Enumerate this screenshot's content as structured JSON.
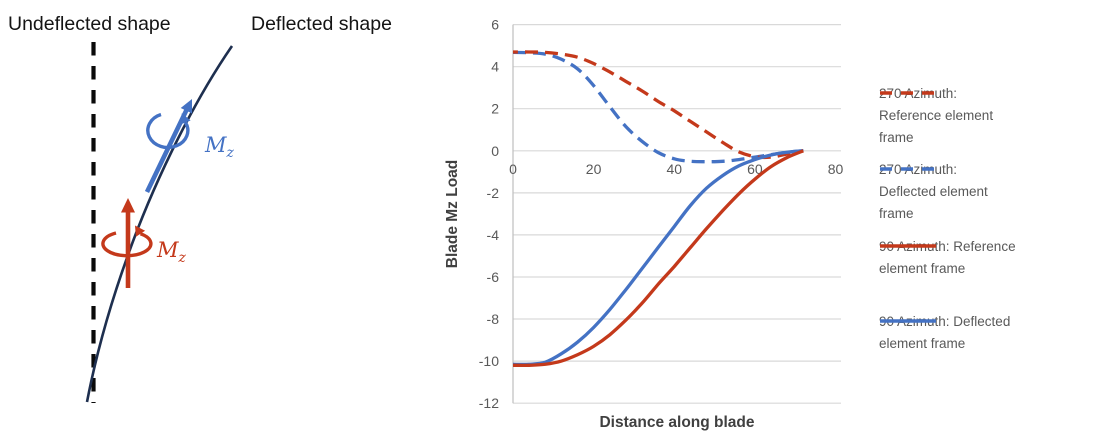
{
  "colors": {
    "red": "#C4391B",
    "blue": "#4472C4",
    "curve_navy": "#1E2F4F",
    "dashed_axis_black": "#0A0A0A",
    "gridline": "#D9D9D9",
    "axis_line": "#BFBFBF",
    "tick_text": "#595959",
    "axis_title_text": "#404040",
    "legend_text": "#595959"
  },
  "diagram": {
    "undeflected_label": "Undeflected shape",
    "deflected_label": "Deflected shape",
    "moment_symbol": "M",
    "moment_subscript": "z"
  },
  "chart_data": {
    "type": "line",
    "title": "",
    "xlabel": "Distance along blade",
    "ylabel": "Blade Mz Load",
    "xlim": [
      0,
      80
    ],
    "ylim": [
      -12,
      6
    ],
    "x_ticks": [
      0,
      20,
      40,
      60,
      80
    ],
    "y_ticks": [
      6,
      4,
      2,
      0,
      -2,
      -4,
      -6,
      -8,
      -10,
      -12
    ],
    "grid": true,
    "legend_position": "right",
    "x": [
      0,
      4,
      8,
      12,
      16,
      20,
      24,
      28,
      32,
      36,
      40,
      44,
      48,
      52,
      56,
      60,
      64,
      68,
      72
    ],
    "series": [
      {
        "name": "270 Azimuth: Reference element frame",
        "legend_lines": [
          "270 Azimuth:",
          "Reference element",
          "frame"
        ],
        "style": "dashed",
        "color": "#C4391B",
        "values": [
          4.7,
          4.7,
          4.68,
          4.6,
          4.45,
          4.15,
          3.75,
          3.3,
          2.85,
          2.35,
          1.9,
          1.4,
          0.9,
          0.4,
          -0.05,
          -0.28,
          -0.3,
          -0.15,
          0
        ]
      },
      {
        "name": "270 Azimuth: Deflected element frame",
        "legend_lines": [
          "270 Azimuth:",
          "Deflected element",
          "frame"
        ],
        "style": "dashed",
        "color": "#4472C4",
        "values": [
          4.68,
          4.66,
          4.6,
          4.35,
          3.9,
          3.1,
          2.1,
          1.15,
          0.45,
          -0.08,
          -0.38,
          -0.5,
          -0.52,
          -0.5,
          -0.42,
          -0.3,
          -0.18,
          -0.07,
          0
        ]
      },
      {
        "name": "90 Azimuth: Reference element frame",
        "legend_lines": [
          "90 Azimuth: Reference",
          "element frame"
        ],
        "style": "solid",
        "color": "#C4391B",
        "values": [
          -10.2,
          -10.2,
          -10.15,
          -10.0,
          -9.7,
          -9.3,
          -8.75,
          -8.05,
          -7.25,
          -6.35,
          -5.5,
          -4.6,
          -3.7,
          -2.85,
          -2.05,
          -1.35,
          -0.75,
          -0.32,
          0
        ]
      },
      {
        "name": "90 Azimuth: Deflected element frame",
        "legend_lines": [
          "90 Azimuth: Deflected",
          "element frame"
        ],
        "style": "solid",
        "color": "#4472C4",
        "values": [
          -10.15,
          -10.15,
          -10.05,
          -9.65,
          -9.1,
          -8.4,
          -7.55,
          -6.6,
          -5.6,
          -4.6,
          -3.6,
          -2.6,
          -1.78,
          -1.18,
          -0.72,
          -0.42,
          -0.2,
          -0.07,
          0
        ]
      }
    ]
  }
}
